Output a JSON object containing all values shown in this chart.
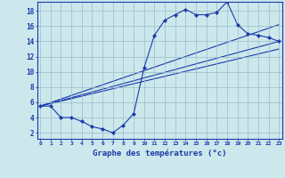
{
  "xlabel": "Graphe des températures (°c)",
  "bg_color": "#cce8ec",
  "line_color": "#1a3aaa",
  "grid_color": "#99bbcc",
  "x_ticks": [
    0,
    1,
    2,
    3,
    4,
    5,
    6,
    7,
    8,
    9,
    10,
    11,
    12,
    13,
    14,
    15,
    16,
    17,
    18,
    19,
    20,
    21,
    22,
    23
  ],
  "y_ticks": [
    2,
    4,
    6,
    8,
    10,
    12,
    14,
    16,
    18
  ],
  "xlim": [
    -0.3,
    23.3
  ],
  "ylim": [
    1.2,
    19.2
  ],
  "main_series": {
    "x": [
      0,
      1,
      2,
      3,
      4,
      5,
      6,
      7,
      8,
      9,
      10,
      11,
      12,
      13,
      14,
      15,
      16,
      17,
      18,
      19,
      20,
      21,
      22,
      23
    ],
    "y": [
      5.5,
      5.5,
      4.0,
      4.0,
      3.5,
      2.8,
      2.5,
      2.0,
      3.0,
      4.5,
      10.5,
      14.8,
      16.8,
      17.5,
      18.2,
      17.5,
      17.5,
      17.8,
      19.2,
      16.2,
      15.0,
      14.8,
      14.5,
      14.0
    ]
  },
  "reg_lines": [
    {
      "x": [
        0,
        23
      ],
      "y": [
        5.5,
        16.2
      ]
    },
    {
      "x": [
        0,
        23
      ],
      "y": [
        5.5,
        14.0
      ]
    },
    {
      "x": [
        0,
        23
      ],
      "y": [
        5.5,
        13.0
      ]
    }
  ]
}
